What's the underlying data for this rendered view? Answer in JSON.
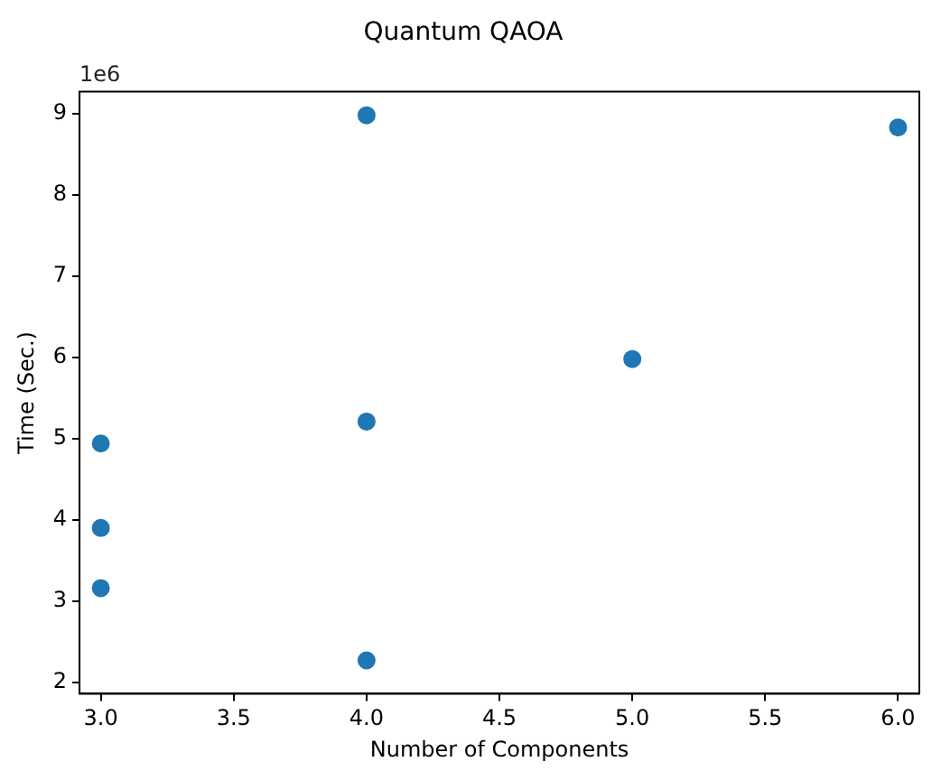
{
  "chart_data": {
    "type": "scatter",
    "title": "Quantum QAOA",
    "xlabel": "Number of Components",
    "ylabel": "Time (Sec.)",
    "x": [
      3,
      3,
      3,
      4,
      4,
      4,
      5,
      6
    ],
    "series": [
      {
        "color": "#1f77b4",
        "values": [
          4.94,
          3.9,
          3.16,
          8.98,
          5.21,
          2.27,
          5.98,
          8.83
        ]
      }
    ],
    "marker": "circle",
    "xlim": [
      2.92,
      6.08
    ],
    "xticks": [
      {
        "value": 3,
        "label": "3.0"
      },
      {
        "value": 3.5,
        "label": "3.5"
      },
      {
        "value": 4,
        "label": "4.0"
      },
      {
        "value": 4.5,
        "label": "4.5"
      },
      {
        "value": 5,
        "label": "5.0"
      },
      {
        "value": 5.5,
        "label": "5.5"
      },
      {
        "value": 6,
        "label": "6.0"
      }
    ],
    "ylim": [
      1.86,
      9.27
    ],
    "yticks": [
      2,
      3,
      4,
      5,
      6,
      7,
      8,
      9
    ],
    "annotations": [
      "1e6"
    ],
    "grid": false,
    "legend": false
  }
}
